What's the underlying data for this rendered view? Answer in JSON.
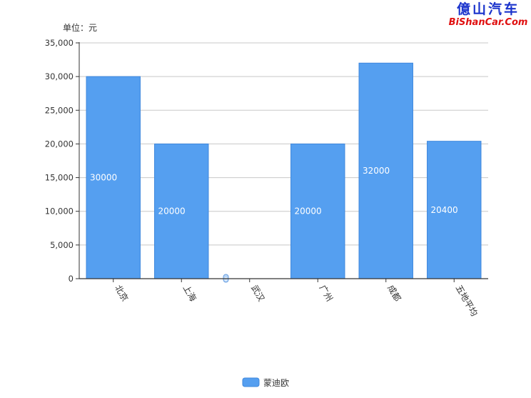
{
  "watermark": {
    "cn": "億山汽车",
    "en": "BiShanCar.Com"
  },
  "chart_data": {
    "type": "bar",
    "unit_label": "单位：元",
    "categories": [
      "北京",
      "上海",
      "武汉",
      "广州",
      "成都",
      "五地平均"
    ],
    "series": [
      {
        "name": "蒙迪欧",
        "values": [
          30000,
          20000,
          0,
          20000,
          32000,
          20400
        ],
        "color": "#559ff0"
      }
    ],
    "data_labels": [
      "30000",
      "20000",
      "0",
      "20000",
      "32000",
      "20400"
    ],
    "ylim": [
      0,
      35000
    ],
    "yticks": [
      0,
      5000,
      10000,
      15000,
      20000,
      25000,
      30000,
      35000
    ],
    "ytick_labels": [
      "0",
      "5,000",
      "10,000",
      "15,000",
      "20,000",
      "25,000",
      "30,000",
      "35,000"
    ],
    "grid": true,
    "legend_position": "bottom-center"
  }
}
